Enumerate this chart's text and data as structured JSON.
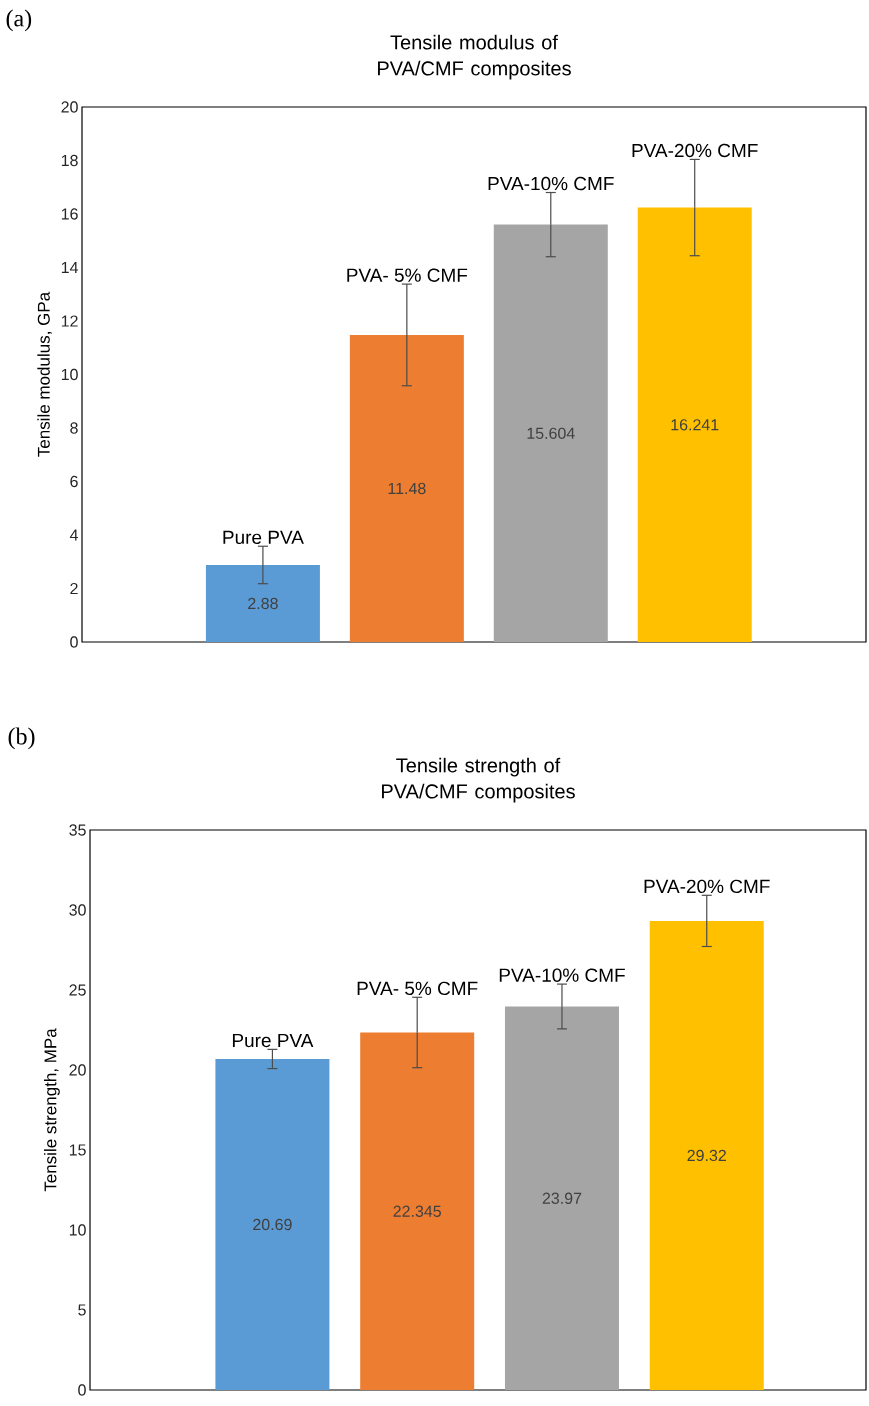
{
  "chart_data": [
    {
      "type": "bar",
      "title": "Tensile modulus of PVA/CMF composites",
      "ylabel": "Tensile modulus, GPa",
      "annotations": [
        "(a)"
      ],
      "categories": [
        "Pure PVA",
        "PVA- 5% CMF",
        "PVA-10% CMF",
        "PVA-20% CMF"
      ],
      "values": [
        2.88,
        11.48,
        15.604,
        16.241
      ],
      "errors": [
        0.7,
        1.9,
        1.2,
        1.8
      ],
      "colors": [
        "#5b9bd5",
        "#ed7d31",
        "#a5a5a5",
        "#ffc000"
      ],
      "ylim": [
        0,
        20
      ],
      "yticks": [
        0,
        2,
        4,
        6,
        8,
        10,
        12,
        14,
        16,
        18,
        20
      ],
      "data_labels": true
    },
    {
      "type": "bar",
      "title": "Tensile strength of PVA/CMF composites",
      "ylabel": "Tensile strength, MPa",
      "annotations": [
        "(b)"
      ],
      "categories": [
        "Pure PVA",
        "PVA- 5% CMF",
        "PVA-10% CMF",
        "PVA-20% CMF"
      ],
      "values": [
        20.69,
        22.345,
        23.97,
        29.32
      ],
      "errors": [
        0.6,
        2.2,
        1.4,
        1.6
      ],
      "colors": [
        "#5b9bd5",
        "#ed7d31",
        "#a5a5a5",
        "#ffc000"
      ],
      "ylim": [
        0,
        35
      ],
      "yticks": [
        0,
        5,
        10,
        15,
        20,
        25,
        30,
        35
      ],
      "data_labels": true
    }
  ]
}
